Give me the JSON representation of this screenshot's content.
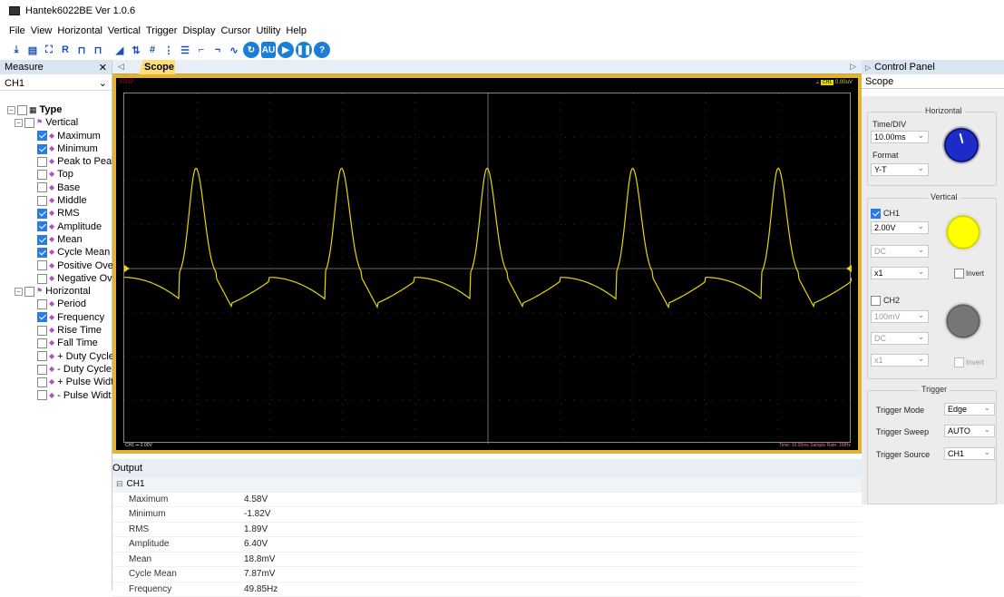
{
  "title": "Hantek6022BE Ver 1.0.6",
  "menu": [
    "File",
    "View",
    "Horizontal",
    "Vertical",
    "Trigger",
    "Display",
    "Cursor",
    "Utility",
    "Help"
  ],
  "toolbar": [
    "R",
    "AU",
    "?"
  ],
  "measure": {
    "title": "Measure",
    "channel": "CH1",
    "type_label": "Type",
    "vertical_label": "Vertical",
    "horizontal_label": "Horizontal",
    "vertical_items": [
      {
        "label": "Maximum",
        "checked": true
      },
      {
        "label": "Minimum",
        "checked": true
      },
      {
        "label": "Peak to Peak",
        "checked": false
      },
      {
        "label": "Top",
        "checked": false
      },
      {
        "label": "Base",
        "checked": false
      },
      {
        "label": "Middle",
        "checked": false
      },
      {
        "label": "RMS",
        "checked": true
      },
      {
        "label": "Amplitude",
        "checked": true
      },
      {
        "label": "Mean",
        "checked": true
      },
      {
        "label": "Cycle Mean",
        "checked": true
      },
      {
        "label": "Positive Ove",
        "checked": false
      },
      {
        "label": "Negative Ov",
        "checked": false
      }
    ],
    "horizontal_items": [
      {
        "label": "Period",
        "checked": false
      },
      {
        "label": "Frequency",
        "checked": true
      },
      {
        "label": "Rise Time",
        "checked": false
      },
      {
        "label": "Fall Time",
        "checked": false
      },
      {
        "label": "+ Duty Cycle",
        "checked": false
      },
      {
        "label": "- Duty Cycle",
        "checked": false
      },
      {
        "label": "+ Pulse Widt",
        "checked": false
      },
      {
        "label": "- Pulse Widt",
        "checked": false
      }
    ]
  },
  "tab": "Scope",
  "scope": {
    "status": "STOP",
    "ch1_indicator": "CH1",
    "ch1_trigger_value": "0.00uV",
    "bottom_left": "CH1 ⎓ 2.00V",
    "bottom_right": "Time: 10.00ms  Sample Rate: 1MHz",
    "trace_color": "#e6d800",
    "waveform_frequency": "49.85Hz"
  },
  "control": {
    "title": "Control Panel",
    "subtitle": "Scope",
    "horizontal": {
      "title": "Horizontal",
      "timediv_label": "Time/DIV",
      "timediv": "10.00ms",
      "format_label": "Format",
      "format": "Y-T"
    },
    "vertical": {
      "title": "Vertical",
      "ch1": "CH1",
      "ch1_volt": "2.00V",
      "ch1_coupling": "DC",
      "ch1_probe": "x1",
      "ch1_invert": "Invert",
      "ch2": "CH2",
      "ch2_volt": "100mV",
      "ch2_coupling": "DC",
      "ch2_probe": "x1",
      "ch2_invert": "Invert"
    },
    "trigger": {
      "title": "Trigger",
      "mode_label": "Trigger Mode",
      "mode": "Edge",
      "sweep_label": "Trigger Sweep",
      "sweep": "AUTO",
      "source_label": "Trigger Source",
      "source": "CH1"
    }
  },
  "output": {
    "title": "Output",
    "group": "CH1",
    "rows": [
      {
        "k": "Maximum",
        "v": "4.58V"
      },
      {
        "k": "Minimum",
        "v": "-1.82V"
      },
      {
        "k": "RMS",
        "v": "1.89V"
      },
      {
        "k": "Amplitude",
        "v": "6.40V"
      },
      {
        "k": "Mean",
        "v": "18.8mV"
      },
      {
        "k": "Cycle Mean",
        "v": "7.87mV"
      },
      {
        "k": "Frequency",
        "v": "49.85Hz"
      }
    ]
  }
}
